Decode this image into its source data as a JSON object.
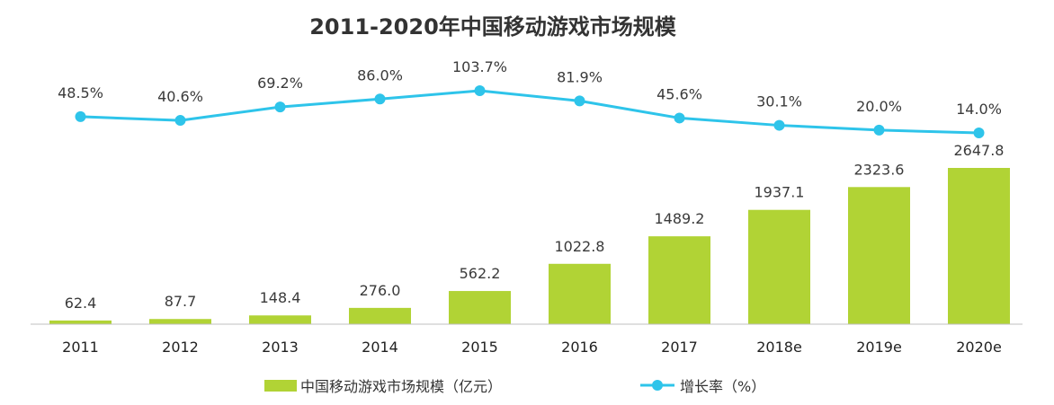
{
  "chart_data": {
    "type": "bar",
    "title": "2011-2020年中国移动游戏市场规模",
    "categories": [
      "2011",
      "2012",
      "2013",
      "2014",
      "2015",
      "2016",
      "2017",
      "2018e",
      "2019e",
      "2020e"
    ],
    "series": [
      {
        "name": "中国移动游戏市场规模（亿元）",
        "type": "bar",
        "values": [
          62.4,
          87.7,
          148.4,
          276.0,
          562.2,
          1022.8,
          1489.2,
          1937.1,
          2323.6,
          2647.8
        ],
        "labels": [
          "62.4",
          "87.7",
          "148.4",
          "276.0",
          "562.2",
          "1022.8",
          "1489.2",
          "1937.1",
          "2323.6",
          "2647.8"
        ],
        "color": "#b1d335"
      },
      {
        "name": "增长率（%）",
        "type": "line",
        "values": [
          48.5,
          40.6,
          69.2,
          86.0,
          103.7,
          81.9,
          45.6,
          30.1,
          20.0,
          14.0
        ],
        "labels": [
          "48.5%",
          "40.6%",
          "69.2%",
          "86.0%",
          "103.7%",
          "81.9%",
          "45.6%",
          "30.1%",
          "20.0%",
          "14.0%"
        ],
        "color": "#2ec4ea"
      }
    ],
    "bar_ylim": [
      0,
      2647.8
    ],
    "line_ylim": [
      0,
      103.7
    ],
    "legend_position": "bottom",
    "grid": false
  }
}
